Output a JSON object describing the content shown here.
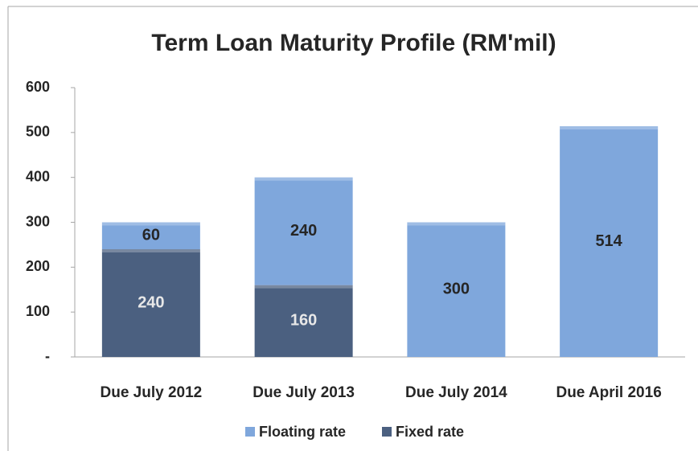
{
  "chart_data": {
    "type": "stacked_bar",
    "title": "Term Loan Maturity Profile (RM'mil)",
    "categories": [
      "Due July 2012",
      "Due July 2013",
      "Due July 2014",
      "Due April 2016"
    ],
    "series": [
      {
        "name": "Fixed rate",
        "color": "#4b6080",
        "values": [
          240,
          160,
          null,
          null
        ]
      },
      {
        "name": "Floating rate",
        "color": "#7fa7dc",
        "values": [
          60,
          240,
          300,
          514
        ]
      }
    ],
    "ylim": [
      0,
      600
    ],
    "yticks": [
      {
        "value": 0,
        "label": "-"
      },
      100,
      200,
      300,
      400,
      500,
      600
    ],
    "grid": false,
    "legend": "bottom"
  }
}
